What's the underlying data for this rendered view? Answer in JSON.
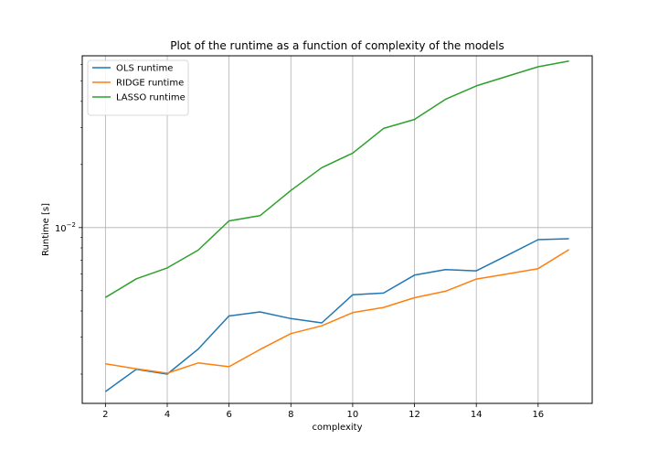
{
  "chart_data": {
    "type": "line",
    "title": "Plot of the runtime as a function of complexity of the models",
    "xlabel": "complexity",
    "ylabel": "Runtime [s]",
    "y_scale": "log",
    "xlim": [
      1.25,
      17.75
    ],
    "ylim": [
      0.00145,
      0.066
    ],
    "x_ticks": [
      2,
      4,
      6,
      8,
      10,
      12,
      14,
      16
    ],
    "y_tick_label": "10^-2",
    "grid": "on",
    "legend_position": "top-left",
    "x": [
      2,
      3,
      4,
      5,
      6,
      7,
      8,
      9,
      10,
      11,
      12,
      13,
      14,
      15,
      16,
      17
    ],
    "series": [
      {
        "name": "OLS runtime",
        "color": "#1f77b4",
        "values": [
          0.00165,
          0.00211,
          0.002,
          0.00263,
          0.00379,
          0.00396,
          0.00368,
          0.00351,
          0.00478,
          0.00487,
          0.00593,
          0.0063,
          0.00622,
          0.00737,
          0.00876,
          0.00885
        ]
      },
      {
        "name": "RIDGE runtime",
        "color": "#ff7f0e",
        "values": [
          0.00224,
          0.00212,
          0.00202,
          0.00226,
          0.00217,
          0.00262,
          0.00312,
          0.0034,
          0.00393,
          0.00416,
          0.00463,
          0.00497,
          0.00568,
          0.00601,
          0.00637,
          0.00785
        ]
      },
      {
        "name": "LASSO runtime",
        "color": "#2ca02c",
        "values": [
          0.00464,
          0.0057,
          0.00642,
          0.0078,
          0.01076,
          0.0114,
          0.01504,
          0.01932,
          0.02266,
          0.02971,
          0.03279,
          0.0409,
          0.04741,
          0.0527,
          0.05853,
          0.06229
        ]
      }
    ]
  }
}
